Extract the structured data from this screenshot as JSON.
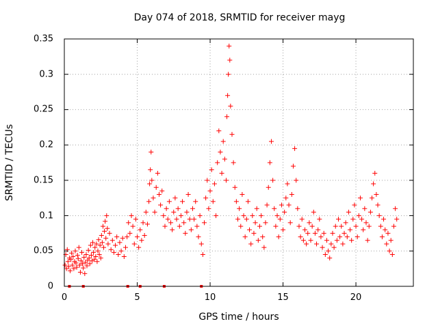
{
  "chart_data": {
    "type": "scatter",
    "title": "Day 074 of 2018, SRMTID for receiver mayg",
    "xlabel": "GPS time / hours",
    "ylabel": "SRMTID / TECUs",
    "xlim": [
      0,
      23.94
    ],
    "ylim": [
      0,
      0.35
    ],
    "xticks": [
      0,
      5,
      10,
      15,
      20
    ],
    "xtick_labels": [
      "0",
      "5",
      "10",
      "15",
      "20"
    ],
    "yticks": [
      0,
      0.05,
      0.1,
      0.15,
      0.2,
      0.25,
      0.3,
      0.35
    ],
    "ytick_labels": [
      "0",
      "0.05",
      "0.1",
      "0.15",
      "0.2",
      "0.25",
      "0.3",
      "0.35"
    ],
    "grid": true,
    "marker": "plus",
    "color": "#ff0000",
    "series": [
      {
        "name": "SRMTID",
        "points": [
          [
            0.05,
            0.03
          ],
          [
            0.1,
            0.045
          ],
          [
            0.15,
            0.025
          ],
          [
            0.2,
            0.052
          ],
          [
            0.25,
            0.035
          ],
          [
            0.3,
            0.028
          ],
          [
            0.35,
            0.04
          ],
          [
            0.4,
            0.022
          ],
          [
            0.45,
            0.038
          ],
          [
            0.5,
            0.047
          ],
          [
            0.55,
            0.03
          ],
          [
            0.6,
            0.042
          ],
          [
            0.65,
            0.025
          ],
          [
            0.7,
            0.035
          ],
          [
            0.75,
            0.05
          ],
          [
            0.8,
            0.033
          ],
          [
            0.85,
            0.027
          ],
          [
            0.9,
            0.044
          ],
          [
            0.95,
            0.039
          ],
          [
            1.0,
            0.055
          ],
          [
            1.05,
            0.03
          ],
          [
            1.1,
            0.02
          ],
          [
            1.15,
            0.036
          ],
          [
            1.2,
            0.048
          ],
          [
            1.25,
            0.032
          ],
          [
            1.3,
            0.026
          ],
          [
            1.35,
            0.041
          ],
          [
            1.4,
            0.018
          ],
          [
            1.45,
            0.034
          ],
          [
            1.5,
            0.045
          ],
          [
            1.55,
            0.029
          ],
          [
            1.6,
            0.037
          ],
          [
            1.65,
            0.051
          ],
          [
            1.7,
            0.04
          ],
          [
            1.75,
            0.032
          ],
          [
            1.8,
            0.058
          ],
          [
            1.85,
            0.044
          ],
          [
            1.9,
            0.036
          ],
          [
            1.95,
            0.062
          ],
          [
            2.0,
            0.048
          ],
          [
            2.05,
            0.038
          ],
          [
            2.1,
            0.055
          ],
          [
            2.15,
            0.042
          ],
          [
            2.2,
            0.06
          ],
          [
            2.25,
            0.035
          ],
          [
            2.3,
            0.05
          ],
          [
            2.35,
            0.066
          ],
          [
            2.4,
            0.045
          ],
          [
            2.45,
            0.058
          ],
          [
            2.5,
            0.04
          ],
          [
            2.55,
            0.072
          ],
          [
            2.6,
            0.062
          ],
          [
            2.65,
            0.085
          ],
          [
            2.7,
            0.055
          ],
          [
            2.75,
            0.078
          ],
          [
            2.8,
            0.092
          ],
          [
            2.85,
            0.068
          ],
          [
            2.9,
            0.1
          ],
          [
            2.95,
            0.082
          ],
          [
            3.0,
            0.06
          ],
          [
            3.1,
            0.075
          ],
          [
            3.2,
            0.052
          ],
          [
            3.3,
            0.065
          ],
          [
            3.4,
            0.048
          ],
          [
            3.5,
            0.058
          ],
          [
            3.6,
            0.07
          ],
          [
            3.7,
            0.045
          ],
          [
            3.8,
            0.062
          ],
          [
            3.9,
            0.05
          ],
          [
            4.0,
            0.068
          ],
          [
            4.1,
            0.042
          ],
          [
            4.2,
            0.055
          ],
          [
            4.3,
            0.07
          ],
          [
            4.4,
            0.09
          ],
          [
            4.5,
            0.075
          ],
          [
            4.6,
            0.1
          ],
          [
            4.7,
            0.085
          ],
          [
            4.8,
            0.06
          ],
          [
            4.9,
            0.095
          ],
          [
            5.0,
            0.07
          ],
          [
            5.1,
            0.055
          ],
          [
            5.2,
            0.08
          ],
          [
            5.3,
            0.065
          ],
          [
            5.4,
            0.09
          ],
          [
            5.5,
            0.072
          ],
          [
            5.6,
            0.105
          ],
          [
            5.7,
            0.088
          ],
          [
            5.8,
            0.12
          ],
          [
            5.85,
            0.145
          ],
          [
            5.9,
            0.165
          ],
          [
            5.95,
            0.19
          ],
          [
            6.0,
            0.15
          ],
          [
            6.1,
            0.125
          ],
          [
            6.2,
            0.105
          ],
          [
            6.3,
            0.14
          ],
          [
            6.4,
            0.16
          ],
          [
            6.5,
            0.13
          ],
          [
            6.6,
            0.115
          ],
          [
            6.7,
            0.135
          ],
          [
            6.8,
            0.1
          ],
          [
            6.9,
            0.085
          ],
          [
            7.0,
            0.11
          ],
          [
            7.1,
            0.095
          ],
          [
            7.2,
            0.12
          ],
          [
            7.3,
            0.09
          ],
          [
            7.4,
            0.08
          ],
          [
            7.5,
            0.105
          ],
          [
            7.6,
            0.125
          ],
          [
            7.7,
            0.095
          ],
          [
            7.8,
            0.11
          ],
          [
            7.9,
            0.085
          ],
          [
            8.0,
            0.1
          ],
          [
            8.1,
            0.12
          ],
          [
            8.2,
            0.09
          ],
          [
            8.3,
            0.075
          ],
          [
            8.4,
            0.105
          ],
          [
            8.5,
            0.13
          ],
          [
            8.6,
            0.095
          ],
          [
            8.7,
            0.08
          ],
          [
            8.8,
            0.11
          ],
          [
            8.9,
            0.095
          ],
          [
            9.0,
            0.12
          ],
          [
            9.1,
            0.085
          ],
          [
            9.2,
            0.07
          ],
          [
            9.3,
            0.1
          ],
          [
            9.4,
            0.06
          ],
          [
            9.5,
            0.045
          ],
          [
            9.6,
            0.09
          ],
          [
            9.7,
            0.125
          ],
          [
            9.8,
            0.15
          ],
          [
            9.9,
            0.11
          ],
          [
            10.0,
            0.135
          ],
          [
            10.1,
            0.165
          ],
          [
            10.2,
            0.12
          ],
          [
            10.3,
            0.145
          ],
          [
            10.4,
            0.1
          ],
          [
            10.5,
            0.175
          ],
          [
            10.6,
            0.22
          ],
          [
            10.7,
            0.19
          ],
          [
            10.8,
            0.16
          ],
          [
            10.9,
            0.205
          ],
          [
            11.0,
            0.18
          ],
          [
            11.1,
            0.15
          ],
          [
            11.15,
            0.24
          ],
          [
            11.2,
            0.27
          ],
          [
            11.25,
            0.3
          ],
          [
            11.3,
            0.34
          ],
          [
            11.35,
            0.32
          ],
          [
            11.4,
            0.255
          ],
          [
            11.5,
            0.215
          ],
          [
            11.6,
            0.175
          ],
          [
            11.7,
            0.14
          ],
          [
            11.8,
            0.12
          ],
          [
            11.9,
            0.095
          ],
          [
            12.0,
            0.11
          ],
          [
            12.1,
            0.085
          ],
          [
            12.2,
            0.13
          ],
          [
            12.3,
            0.1
          ],
          [
            12.4,
            0.07
          ],
          [
            12.5,
            0.095
          ],
          [
            12.6,
            0.12
          ],
          [
            12.7,
            0.08
          ],
          [
            12.8,
            0.06
          ],
          [
            12.9,
            0.1
          ],
          [
            13.0,
            0.075
          ],
          [
            13.1,
            0.09
          ],
          [
            13.2,
            0.11
          ],
          [
            13.3,
            0.065
          ],
          [
            13.4,
            0.085
          ],
          [
            13.5,
            0.1
          ],
          [
            13.6,
            0.07
          ],
          [
            13.7,
            0.055
          ],
          [
            13.8,
            0.09
          ],
          [
            13.9,
            0.115
          ],
          [
            14.0,
            0.14
          ],
          [
            14.1,
            0.175
          ],
          [
            14.2,
            0.205
          ],
          [
            14.3,
            0.15
          ],
          [
            14.4,
            0.11
          ],
          [
            14.5,
            0.085
          ],
          [
            14.6,
            0.1
          ],
          [
            14.7,
            0.07
          ],
          [
            14.8,
            0.095
          ],
          [
            14.9,
            0.115
          ],
          [
            15.0,
            0.08
          ],
          [
            15.1,
            0.105
          ],
          [
            15.2,
            0.125
          ],
          [
            15.3,
            0.145
          ],
          [
            15.4,
            0.115
          ],
          [
            15.5,
            0.09
          ],
          [
            15.6,
            0.13
          ],
          [
            15.7,
            0.17
          ],
          [
            15.8,
            0.195
          ],
          [
            15.9,
            0.15
          ],
          [
            16.0,
            0.11
          ],
          [
            16.1,
            0.085
          ],
          [
            16.2,
            0.07
          ],
          [
            16.3,
            0.095
          ],
          [
            16.4,
            0.065
          ],
          [
            16.5,
            0.08
          ],
          [
            16.6,
            0.06
          ],
          [
            16.7,
            0.075
          ],
          [
            16.8,
            0.09
          ],
          [
            16.9,
            0.065
          ],
          [
            17.0,
            0.085
          ],
          [
            17.1,
            0.105
          ],
          [
            17.2,
            0.075
          ],
          [
            17.3,
            0.06
          ],
          [
            17.4,
            0.08
          ],
          [
            17.5,
            0.095
          ],
          [
            17.6,
            0.07
          ],
          [
            17.7,
            0.055
          ],
          [
            17.8,
            0.075
          ],
          [
            17.9,
            0.045
          ],
          [
            18.0,
            0.065
          ],
          [
            18.1,
            0.05
          ],
          [
            18.2,
            0.04
          ],
          [
            18.3,
            0.06
          ],
          [
            18.4,
            0.075
          ],
          [
            18.5,
            0.055
          ],
          [
            18.6,
            0.085
          ],
          [
            18.7,
            0.065
          ],
          [
            18.8,
            0.095
          ],
          [
            18.9,
            0.07
          ],
          [
            19.0,
            0.085
          ],
          [
            19.1,
            0.06
          ],
          [
            19.2,
            0.075
          ],
          [
            19.3,
            0.09
          ],
          [
            19.4,
            0.07
          ],
          [
            19.5,
            0.105
          ],
          [
            19.6,
            0.08
          ],
          [
            19.7,
            0.065
          ],
          [
            19.8,
            0.095
          ],
          [
            19.9,
            0.115
          ],
          [
            20.0,
            0.085
          ],
          [
            20.1,
            0.07
          ],
          [
            20.2,
            0.1
          ],
          [
            20.3,
            0.125
          ],
          [
            20.4,
            0.095
          ],
          [
            20.5,
            0.08
          ],
          [
            20.6,
            0.11
          ],
          [
            20.7,
            0.09
          ],
          [
            20.8,
            0.065
          ],
          [
            20.9,
            0.085
          ],
          [
            21.0,
            0.105
          ],
          [
            21.1,
            0.125
          ],
          [
            21.2,
            0.145
          ],
          [
            21.3,
            0.16
          ],
          [
            21.4,
            0.13
          ],
          [
            21.5,
            0.115
          ],
          [
            21.6,
            0.1
          ],
          [
            21.7,
            0.085
          ],
          [
            21.8,
            0.07
          ],
          [
            21.9,
            0.095
          ],
          [
            22.0,
            0.08
          ],
          [
            22.1,
            0.06
          ],
          [
            22.2,
            0.075
          ],
          [
            22.3,
            0.05
          ],
          [
            22.4,
            0.065
          ],
          [
            22.5,
            0.045
          ],
          [
            22.6,
            0.085
          ],
          [
            22.7,
            0.11
          ],
          [
            22.8,
            0.095
          ]
        ]
      }
    ],
    "tick_markers_x": [
      0.35,
      1.3,
      4.35,
      5.2,
      6.85,
      9.4
    ]
  }
}
